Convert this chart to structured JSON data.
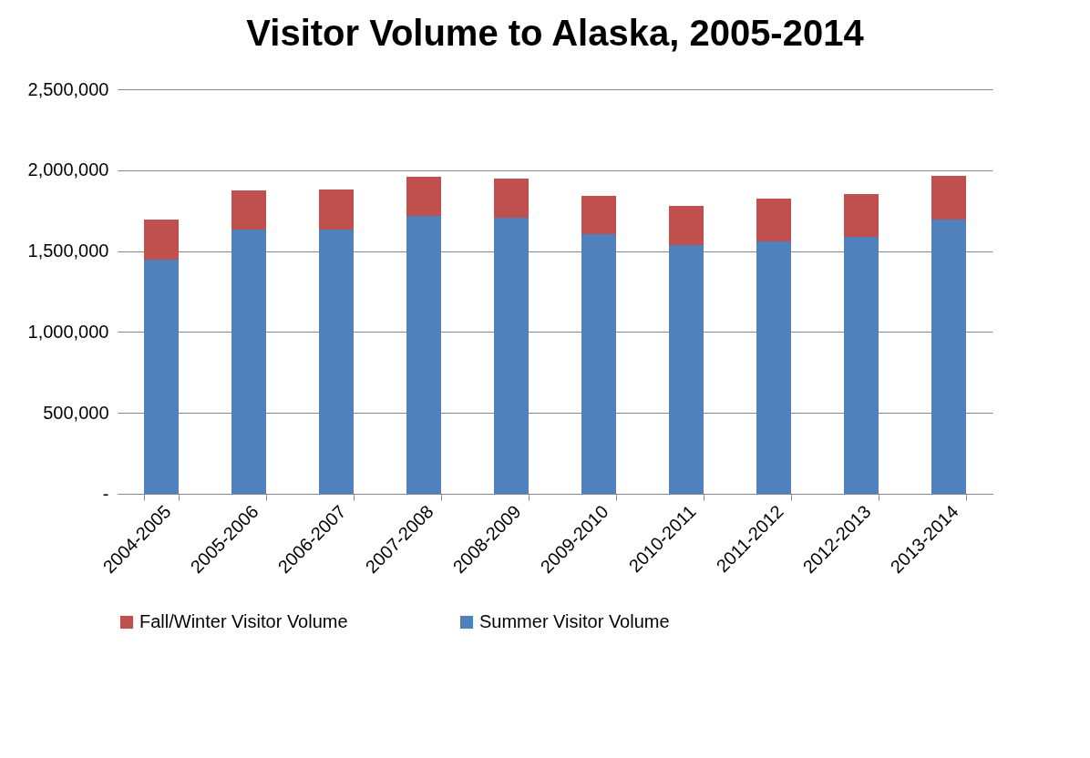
{
  "chart_data": {
    "type": "bar",
    "title": "Visitor Volume to Alaska, 2005-2014",
    "stacked": true,
    "grid": "y",
    "legend": "bottom",
    "categories": [
      "2004-2005",
      "2005-2006",
      "2006-2007",
      "2007-2008",
      "2008-2009",
      "2009-2010",
      "2010-2011",
      "2011-2012",
      "2012-2013",
      "2013-2014"
    ],
    "series": [
      {
        "name": "Summer Visitor Volume",
        "color": "#4f81bd",
        "values": [
          1447000,
          1633000,
          1633000,
          1717000,
          1706000,
          1605000,
          1537000,
          1560000,
          1588000,
          1695000
        ]
      },
      {
        "name": "Fall/Winter Visitor Volume",
        "color": "#c0504d",
        "values": [
          248000,
          242000,
          247000,
          242000,
          242000,
          236000,
          242000,
          264000,
          264000,
          270000
        ]
      }
    ],
    "ylim": [
      0,
      2500000
    ],
    "yticks": [
      {
        "value": 0,
        "label": "-"
      },
      {
        "value": 500000,
        "label": "500,000"
      },
      {
        "value": 1000000,
        "label": "1,000,000"
      },
      {
        "value": 1500000,
        "label": "1,500,000"
      },
      {
        "value": 2000000,
        "label": "2,000,000"
      },
      {
        "value": 2500000,
        "label": "2,500,000"
      }
    ]
  }
}
